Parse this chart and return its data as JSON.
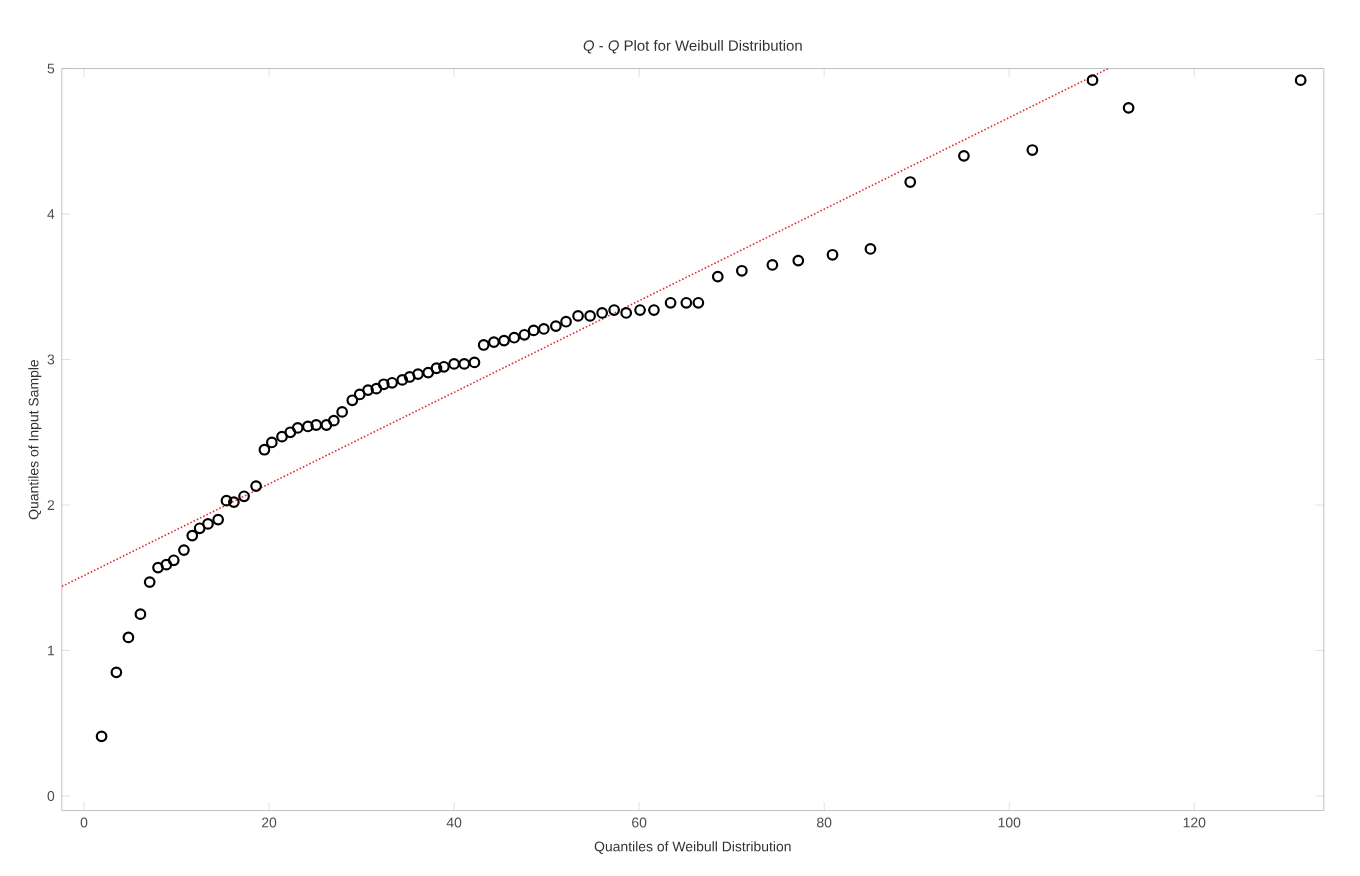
{
  "chart_data": {
    "type": "scatter",
    "title": "*Q* - *Q* Plot for Weibull Distribution",
    "xlabel": "Quantiles of Weibull Distribution",
    "ylabel": "Quantiles of Input Sample",
    "xlim": [
      -2.4,
      134
    ],
    "ylim": [
      -0.1,
      5
    ],
    "xticks": [
      0,
      20,
      40,
      60,
      80,
      100,
      120
    ],
    "yticks": [
      0,
      1,
      2,
      3,
      4,
      5
    ],
    "grid": false,
    "series": [
      {
        "color": "#000000",
        "marker": "circle",
        "x": [
          1.9,
          3.5,
          4.8,
          6.1,
          7.1,
          8.0,
          8.9,
          9.7,
          10.8,
          11.7,
          12.5,
          13.4,
          14.5,
          15.4,
          16.2,
          17.3,
          18.6,
          19.5,
          20.3,
          21.4,
          22.3,
          23.1,
          24.2,
          25.1,
          26.2,
          27.0,
          27.9,
          29.0,
          29.8,
          30.7,
          31.6,
          32.4,
          33.3,
          34.4,
          35.2,
          36.1,
          37.2,
          38.1,
          38.9,
          40.0,
          41.1,
          42.2,
          43.2,
          44.3,
          45.4,
          46.5,
          47.6,
          48.6,
          49.7,
          51.0,
          52.1,
          53.4,
          54.7,
          56.0,
          57.3,
          58.6,
          60.1,
          61.6,
          63.4,
          65.1,
          66.4,
          68.5,
          71.1,
          74.4,
          77.2,
          80.9,
          85.0,
          89.3,
          95.1,
          102.5,
          109.0,
          112.9,
          131.5
        ],
        "values": [
          0.41,
          0.85,
          1.09,
          1.25,
          1.47,
          1.57,
          1.59,
          1.62,
          1.69,
          1.79,
          1.84,
          1.87,
          1.9,
          2.03,
          2.02,
          2.06,
          2.13,
          2.38,
          2.43,
          2.47,
          2.5,
          2.53,
          2.54,
          2.55,
          2.55,
          2.58,
          2.64,
          2.72,
          2.76,
          2.79,
          2.8,
          2.83,
          2.84,
          2.86,
          2.88,
          2.9,
          2.91,
          2.94,
          2.95,
          2.97,
          2.97,
          2.98,
          3.1,
          3.12,
          3.13,
          3.15,
          3.17,
          3.2,
          3.21,
          3.23,
          3.26,
          3.3,
          3.3,
          3.32,
          3.34,
          3.32,
          3.34,
          3.34,
          3.39,
          3.39,
          3.39,
          3.57,
          3.61,
          3.65,
          3.68,
          3.72,
          3.76,
          4.22,
          4.4,
          4.44,
          4.92,
          4.73,
          4.92
        ]
      },
      {
        "type": "line",
        "color": "#e03030",
        "marker": "none",
        "line_style": "dotted",
        "x": [
          -2.4,
          110.7
        ],
        "values": [
          1.44,
          5.0
        ]
      }
    ]
  }
}
